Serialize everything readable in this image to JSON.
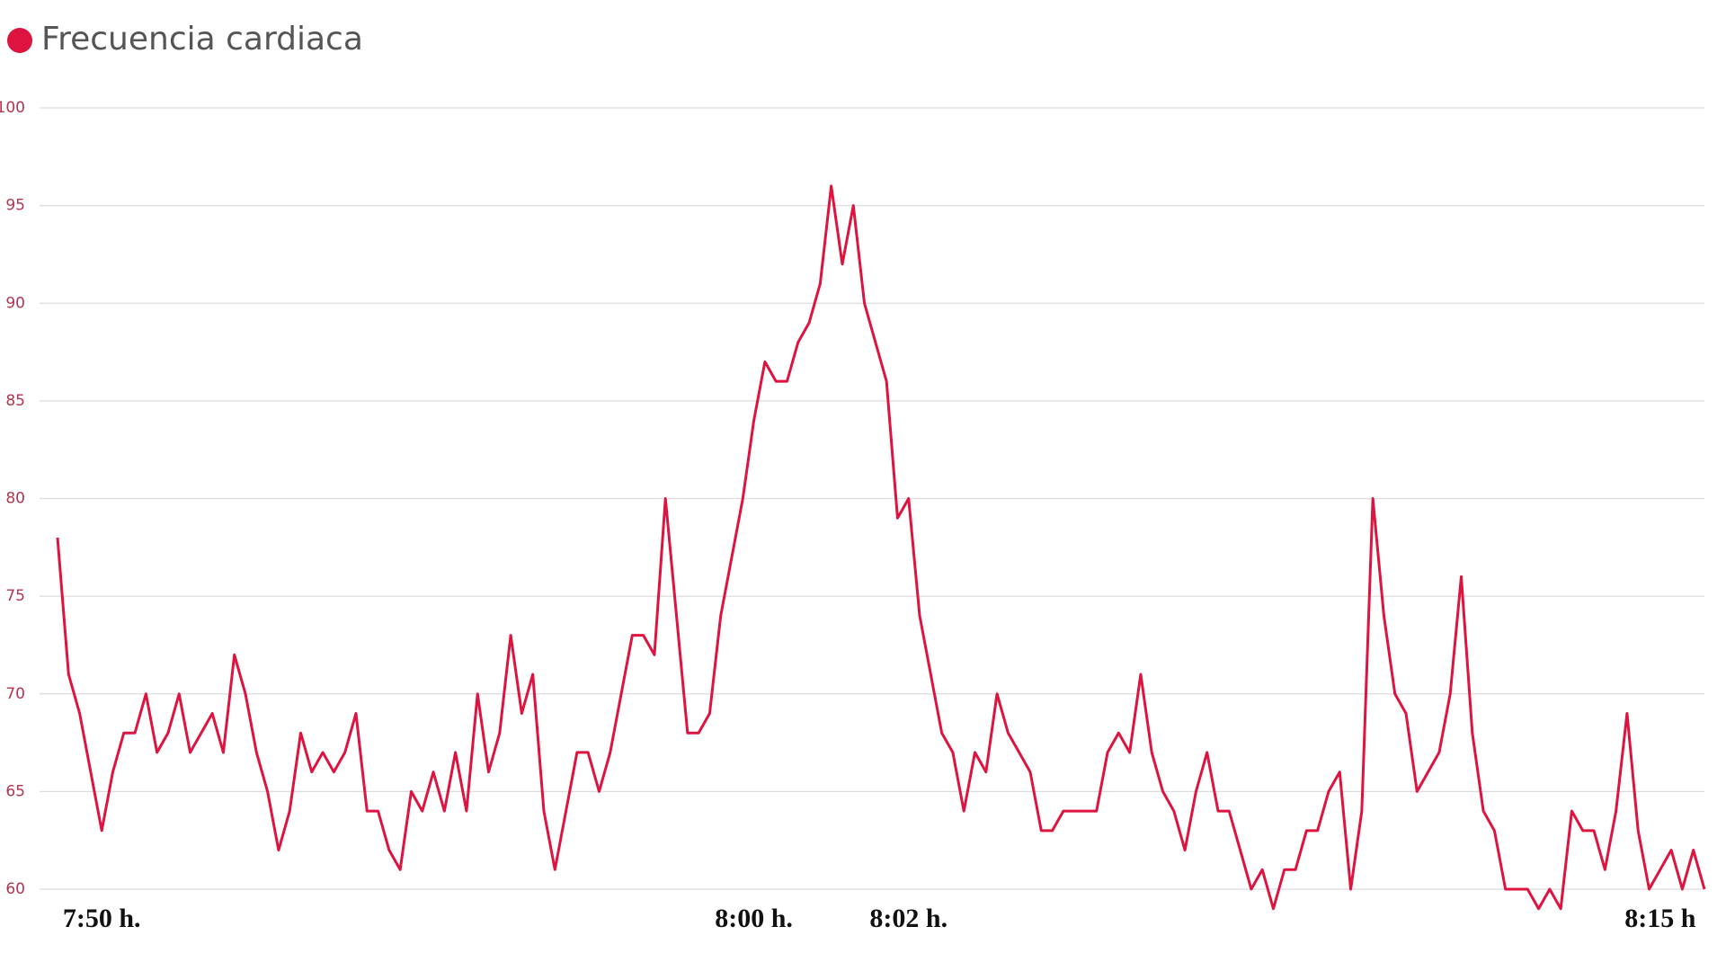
{
  "chart_data": {
    "type": "line",
    "categories": [
      null,
      null,
      null,
      null,
      "7:50 h.",
      null,
      null,
      null,
      null,
      null,
      null,
      null,
      null,
      null,
      null,
      null,
      null,
      null,
      null,
      null,
      null,
      null,
      null,
      null,
      null,
      null,
      null,
      null,
      null,
      null,
      null,
      null,
      null,
      null,
      null,
      null,
      null,
      null,
      null,
      null,
      null,
      null,
      null,
      null,
      null,
      null,
      null,
      null,
      null,
      null,
      null,
      null,
      null,
      null,
      null,
      null,
      null,
      null,
      null,
      null,
      null,
      null,
      null,
      "8:00 h.",
      null,
      null,
      null,
      null,
      null,
      null,
      null,
      null,
      null,
      null,
      null,
      null,
      null,
      "8:02 h.",
      null,
      null,
      null,
      null,
      null,
      null,
      null,
      null,
      null,
      null,
      null,
      null,
      null,
      null,
      null,
      null,
      null,
      null,
      null,
      null,
      null,
      null,
      null,
      null,
      null,
      null,
      null,
      null,
      null,
      null,
      null,
      null,
      null,
      null,
      null,
      null,
      null,
      null,
      null,
      null,
      null,
      null,
      null,
      null,
      null,
      null,
      null,
      null,
      null,
      null,
      null,
      null,
      null,
      null,
      null,
      null,
      null,
      null,
      null,
      null,
      null,
      null,
      null,
      null,
      null,
      null,
      null,
      "8:15 h",
      null,
      null,
      null,
      null
    ],
    "series": [
      {
        "name": "Frecuencia cardiaca",
        "color": "#dc143f",
        "values": [
          78,
          71,
          69,
          66,
          63,
          66,
          68,
          68,
          70,
          67,
          68,
          70,
          67,
          68,
          69,
          67,
          72,
          70,
          67,
          65,
          62,
          64,
          68,
          66,
          67,
          66,
          67,
          69,
          64,
          64,
          62,
          61,
          65,
          64,
          66,
          64,
          67,
          64,
          70,
          66,
          68,
          73,
          69,
          71,
          64,
          61,
          64,
          67,
          67,
          65,
          67,
          70,
          73,
          73,
          72,
          80,
          74,
          68,
          68,
          69,
          74,
          77,
          80,
          84,
          87,
          86,
          86,
          88,
          89,
          91,
          96,
          92,
          95,
          90,
          88,
          86,
          79,
          80,
          74,
          71,
          68,
          67,
          64,
          67,
          66,
          70,
          68,
          67,
          66,
          63,
          63,
          64,
          64,
          64,
          64,
          67,
          68,
          67,
          71,
          67,
          65,
          64,
          62,
          65,
          67,
          64,
          64,
          62,
          60,
          61,
          59,
          61,
          61,
          63,
          63,
          65,
          66,
          60,
          64,
          80,
          74,
          70,
          69,
          65,
          66,
          67,
          70,
          76,
          68,
          64,
          63,
          60,
          60,
          60,
          59,
          60,
          59,
          64,
          63,
          63,
          61,
          64,
          69,
          63,
          60,
          61,
          62,
          60,
          62,
          60
        ]
      }
    ],
    "ylim": [
      60,
      100
    ],
    "yticks": [
      60,
      65,
      70,
      75,
      80,
      85,
      90,
      95,
      100
    ],
    "grid": true
  }
}
